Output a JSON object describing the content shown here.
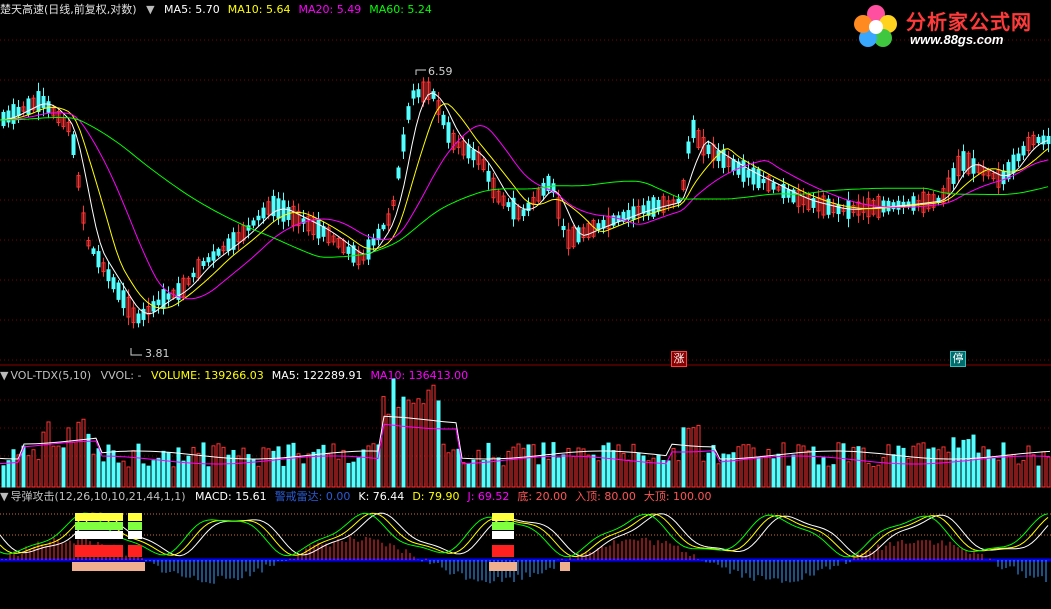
{
  "price_panel": {
    "stock_name": "楚天高速",
    "mode": "(日线,前复权,对数)",
    "ma": [
      {
        "label": "MA5:",
        "value": "5.70",
        "color": "#ffffff"
      },
      {
        "label": "MA10:",
        "value": "5.64",
        "color": "#ffff00"
      },
      {
        "label": "MA20:",
        "value": "5.49",
        "color": "#ff00ff"
      },
      {
        "label": "MA60:",
        "value": "5.24",
        "color": "#00ff00"
      }
    ],
    "high_label": "6.59",
    "low_label": "3.81",
    "tag_zhang": "涨",
    "tag_ting": "停"
  },
  "volume_panel": {
    "title": "VOL-TDX(5,10)",
    "vvol": "VVOL: -",
    "items": [
      {
        "label": "VOLUME:",
        "value": "139266.03",
        "color": "#ffff00"
      },
      {
        "label": "MA5:",
        "value": "122289.91",
        "color": "#ffffff"
      },
      {
        "label": "MA10:",
        "value": "136413.00",
        "color": "#ff00ff"
      }
    ]
  },
  "indicator_panel": {
    "title": "导弹攻击(12,26,10,10,21,44,1,1)",
    "items": [
      {
        "label": "MACD:",
        "value": "15.61",
        "color": "#ffffff"
      },
      {
        "label": "警戒雷达:",
        "value": "0.00",
        "color": "#2a5bd7"
      },
      {
        "label": "K:",
        "value": "76.44",
        "color": "#ffffff"
      },
      {
        "label": "D:",
        "value": "79.90",
        "color": "#ffff00"
      },
      {
        "label": "J:",
        "value": "69.52",
        "color": "#ff00ff"
      },
      {
        "label": "底:",
        "value": "20.00",
        "color": "#ff5555"
      },
      {
        "label": "入顶:",
        "value": "80.00",
        "color": "#ff5555"
      },
      {
        "label": "大顶:",
        "value": "100.00",
        "color": "#ff5555"
      }
    ]
  },
  "logo": {
    "title": "分析家公式网",
    "url": "www.88gs.com"
  },
  "colors": {
    "up": "#ff3232",
    "down": "#54ffff",
    "ma5": "#ffffff",
    "ma10": "#ffff00",
    "ma20": "#ff00ff",
    "ma60": "#00ff00",
    "grid": "#800000",
    "axis_blue": "#0000ff"
  }
}
